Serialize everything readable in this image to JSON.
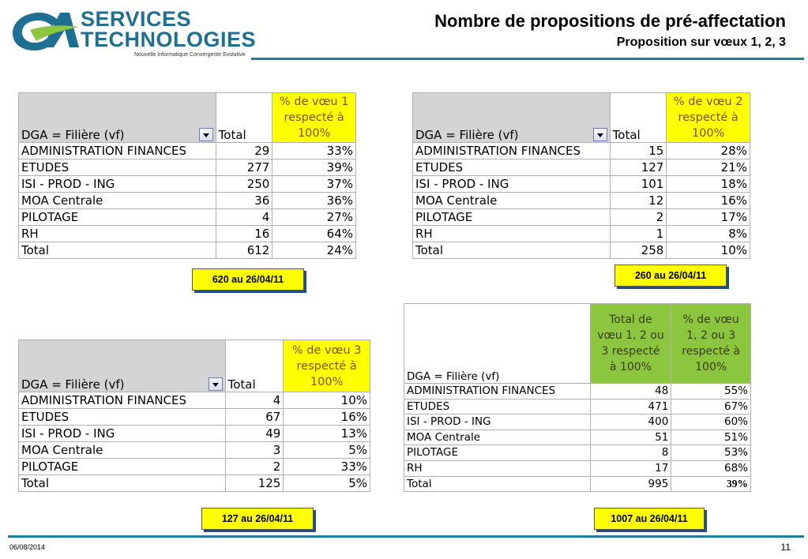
{
  "header": {
    "brand_line1": "SERVICES",
    "brand_line2": "TECHNOLOGIES",
    "tagline": "Nouvelle Informatique Convergente Evolutive",
    "title": "Nombre de propositions de pré-affectation",
    "subtitle": "Proposition sur vœux 1, 2, 3",
    "accent_color": "#1f7f9a",
    "logo_colors": {
      "blue": "#1f6f92",
      "green": "#8cc63f"
    }
  },
  "colors": {
    "highlight_yellow": "#ffff00",
    "highlight_green": "#8cc63f",
    "label_shadow": "#1f4f8a"
  },
  "table1": {
    "col_filter": "DGA = Filière (vf)",
    "col_total": "Total",
    "col_pct_lines": [
      "% de vœu 1",
      "respecté à",
      "100%"
    ],
    "rows": [
      {
        "name": "ADMINISTRATION FINANCES",
        "total": "29",
        "pct": "33%"
      },
      {
        "name": "ETUDES",
        "total": "277",
        "pct": "39%"
      },
      {
        "name": "ISI - PROD - ING",
        "total": "250",
        "pct": "37%"
      },
      {
        "name": "MOA Centrale",
        "total": "36",
        "pct": "36%"
      },
      {
        "name": "PILOTAGE",
        "total": "4",
        "pct": "27%"
      },
      {
        "name": "RH",
        "total": "16",
        "pct": "64%"
      },
      {
        "name": "Total",
        "total": "612",
        "pct": "24%"
      }
    ],
    "label": "620 au 26/04/11"
  },
  "table2": {
    "col_filter": "DGA = Filière (vf)",
    "col_total": "Total",
    "col_pct_lines": [
      "% de vœu 2",
      "respecté à",
      "100%"
    ],
    "rows": [
      {
        "name": "ADMINISTRATION FINANCES",
        "total": "15",
        "pct": "28%"
      },
      {
        "name": "ETUDES",
        "total": "127",
        "pct": "21%"
      },
      {
        "name": "ISI - PROD - ING",
        "total": "101",
        "pct": "18%"
      },
      {
        "name": "MOA Centrale",
        "total": "12",
        "pct": "16%"
      },
      {
        "name": "PILOTAGE",
        "total": "2",
        "pct": "17%"
      },
      {
        "name": "RH",
        "total": "1",
        "pct": "8%"
      },
      {
        "name": "Total",
        "total": "258",
        "pct": "10%"
      }
    ],
    "label": "260 au 26/04/11"
  },
  "table3": {
    "col_filter": "DGA = Filière (vf)",
    "col_total": "Total",
    "col_pct_lines": [
      "% de vœu 3",
      "respecté à",
      "100%"
    ],
    "rows": [
      {
        "name": "ADMINISTRATION FINANCES",
        "total": "4",
        "pct": "10%"
      },
      {
        "name": "ETUDES",
        "total": "67",
        "pct": "16%"
      },
      {
        "name": "ISI - PROD - ING",
        "total": "49",
        "pct": "13%"
      },
      {
        "name": "MOA Centrale",
        "total": "3",
        "pct": "5%"
      },
      {
        "name": "PILOTAGE",
        "total": "2",
        "pct": "33%"
      },
      {
        "name": "Total",
        "total": "125",
        "pct": "5%"
      }
    ],
    "label": "127 au 26/04/11"
  },
  "table4": {
    "col_filter": "DGA = Filière (vf)",
    "col_total_lines": [
      "Total de",
      "vœu 1, 2 ou",
      "3 respecté",
      "à 100%"
    ],
    "col_pct_lines": [
      "% de vœu",
      "1, 2 ou 3",
      "respecté à",
      "100%"
    ],
    "rows": [
      {
        "name": "ADMINISTRATION FINANCES",
        "total": "48",
        "pct": "55%"
      },
      {
        "name": "ETUDES",
        "total": "471",
        "pct": "67%"
      },
      {
        "name": "ISI - PROD - ING",
        "total": "400",
        "pct": "60%"
      },
      {
        "name": "MOA Centrale",
        "total": "51",
        "pct": "51%"
      },
      {
        "name": "PILOTAGE",
        "total": "8",
        "pct": "53%"
      },
      {
        "name": "RH",
        "total": "17",
        "pct": "68%"
      },
      {
        "name": "Total",
        "total": "995",
        "pct": "39%"
      }
    ],
    "label": "1007 au 26/04/11"
  },
  "footer": {
    "date": "06/08/2014",
    "page": "11"
  }
}
